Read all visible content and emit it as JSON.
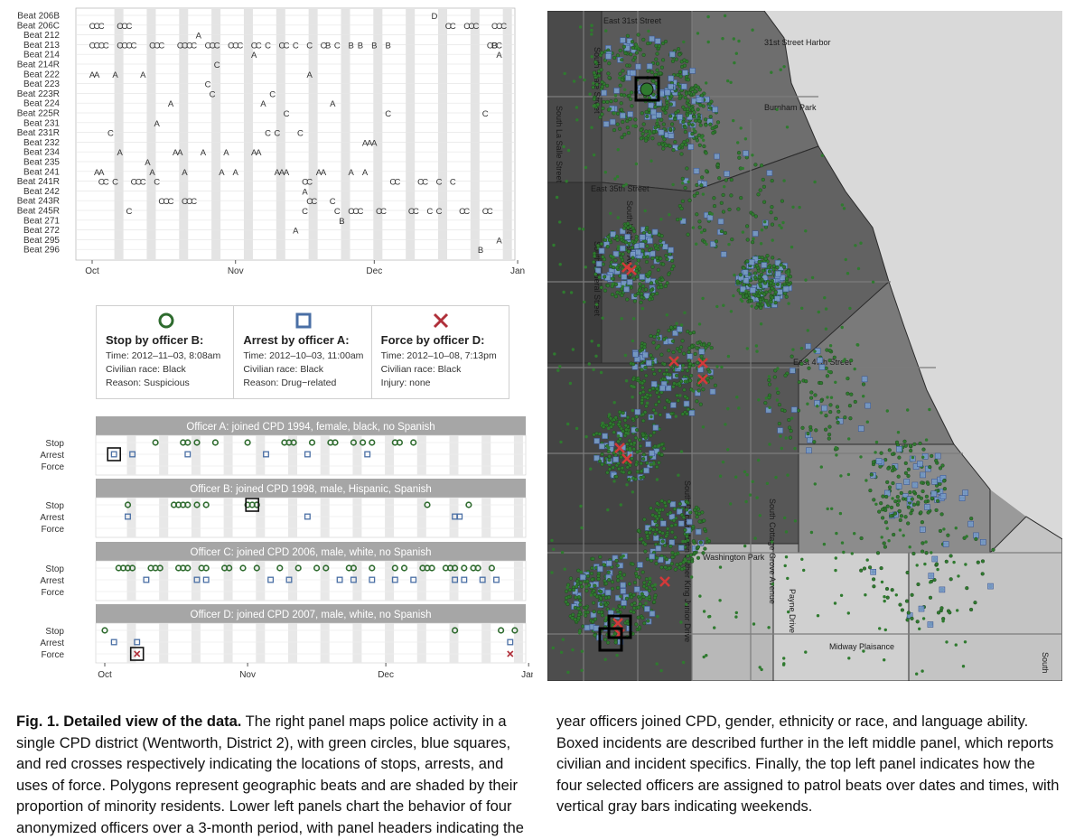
{
  "beat_chart": {
    "type": "timeline",
    "beats": [
      "Beat 206B",
      "Beat 206C",
      "Beat 212",
      "Beat 213",
      "Beat 214",
      "Beat 214R",
      "Beat 222",
      "Beat 223",
      "Beat 223R",
      "Beat 224",
      "Beat 225R",
      "Beat 231",
      "Beat 231R",
      "Beat 232",
      "Beat 234",
      "Beat 235",
      "Beat 241",
      "Beat 241R",
      "Beat 242",
      "Beat 243R",
      "Beat 245R",
      "Beat 271",
      "Beat 272",
      "Beat 295",
      "Beat 296"
    ],
    "month_labels": [
      "Oct",
      "Nov",
      "Dec",
      "Jan"
    ]
  },
  "legend": [
    {
      "symbol": "circle",
      "color": "#2e6b2e",
      "title": "Stop by officer B:",
      "lines": [
        "Time: 2012–11–03, 8:08am",
        "Civilian race: Black",
        "Reason: Suspicious"
      ]
    },
    {
      "symbol": "square",
      "color": "#4a6fa5",
      "title": "Arrest by officer A:",
      "lines": [
        "Time: 2012–10–03, 11:00am",
        "Civilian race: Black",
        "Reason: Drug−related"
      ]
    },
    {
      "symbol": "cross",
      "color": "#b0303a",
      "title": "Force by officer D:",
      "lines": [
        "Time: 2012–10–08, 7:13pm",
        "Civilian race: Black",
        "Injury: none"
      ]
    }
  ],
  "officers": [
    {
      "header": "Officer A: joined CPD 1994, female, black, no Spanish"
    },
    {
      "header": "Officer B: joined CPD 1998, male, Hispanic, Spanish"
    },
    {
      "header": "Officer C: joined CPD 2006, male, white, no Spanish"
    },
    {
      "header": "Officer D: joined CPD 2007, male, white, no Spanish"
    }
  ],
  "officer_row_labels": [
    "Stop",
    "Arrest",
    "Force"
  ],
  "map": {
    "labels": [
      "East 31st Street",
      "31st Street Harbor",
      "Burnham Park",
      "South State Street",
      "South La Salle Street",
      "South Federal Street",
      "South Wabash Avenue",
      "East 35th Street",
      "East 47th Street",
      "South Doctor Martin Luther King Junior Drive",
      "South Cottage Grove Avenue",
      "Washington Park",
      "Payne Drive",
      "Midway Plaisance",
      "South"
    ],
    "colors": {
      "stop": "#2f7a2f",
      "arrest": "#7f9fd6",
      "force": "#d23a3a",
      "water": "#d9d9d9"
    }
  },
  "caption": {
    "title": "Fig. 1. Detailed view of the data.",
    "text": " The right panel maps police activity in a single CPD district (Wentworth, District 2), with green circles, blue squares, and red crosses respectively indicating the locations of stops, arrests, and uses of force. Polygons represent geographic beats and are shaded by their proportion of minority residents. Lower left panels chart the behavior of four anonymized officers over a 3-month period, with panel headers indicating the year officers joined CPD, gender, ethnicity or race, and language ability. Boxed incidents are described further in the left middle panel, which reports civilian and incident specifics. Finally, the top left panel indicates how the four selected officers are assigned to patrol beats over dates and times, with vertical gray bars indicating weekends."
  }
}
